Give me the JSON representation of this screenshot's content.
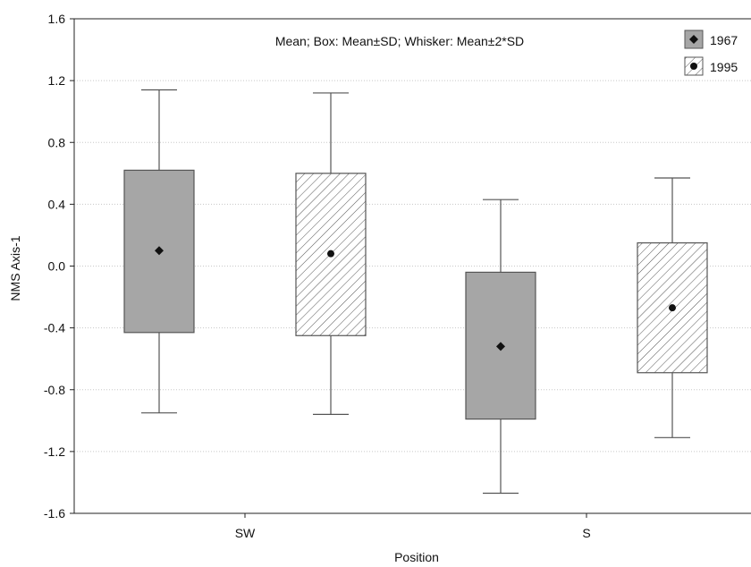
{
  "chart_data": {
    "type": "box",
    "title": "",
    "annotation": "Mean; Box: Mean±SD; Whisker: Mean±2*SD",
    "xlabel": "Position",
    "ylabel": "NMS Axis-1",
    "categories": [
      "SW",
      "S"
    ],
    "ylim": [
      -1.6,
      1.6
    ],
    "yticks": [
      "1.6",
      "1.2",
      "0.8",
      "0.4",
      "0.0",
      "-0.4",
      "-0.8",
      "-1.2",
      "-1.6"
    ],
    "grid": "horizontal dotted",
    "legend_position": "top-right",
    "series": [
      {
        "name": "1967",
        "fill": "solid",
        "color": "#a6a6a6",
        "boxes": [
          {
            "category": "SW",
            "mean": 0.1,
            "box_low": -0.43,
            "box_high": 0.62,
            "whisker_low": -0.95,
            "whisker_high": 1.14
          },
          {
            "category": "S",
            "mean": -0.52,
            "box_low": -0.99,
            "box_high": -0.04,
            "whisker_low": -1.47,
            "whisker_high": 0.43
          }
        ]
      },
      {
        "name": "1995",
        "fill": "hatched",
        "color": "#ffffff",
        "boxes": [
          {
            "category": "SW",
            "mean": 0.08,
            "box_low": -0.45,
            "box_high": 0.6,
            "whisker_low": -0.96,
            "whisker_high": 1.12
          },
          {
            "category": "S",
            "mean": -0.27,
            "box_low": -0.69,
            "box_high": 0.15,
            "whisker_low": -1.11,
            "whisker_high": 0.57
          }
        ]
      }
    ]
  }
}
